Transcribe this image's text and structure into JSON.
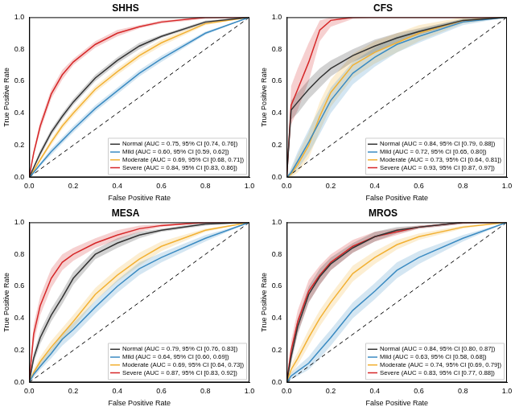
{
  "chart_data": [
    {
      "type": "line",
      "title": "SHHS",
      "x_label": "False Positive Rate",
      "y_label": "True Positive Rate",
      "xlim": [
        0,
        1
      ],
      "ylim": [
        0,
        1
      ],
      "xticks": [
        {
          "value": 0,
          "label": "0.0"
        },
        0.2,
        0.4,
        0.6,
        0.8,
        {
          "value": 1,
          "label": "1.0"
        }
      ],
      "yticks": [
        {
          "value": 0,
          "label": "0.0"
        },
        0.2,
        0.4,
        0.6,
        0.8,
        {
          "value": 1,
          "label": "1.0"
        }
      ],
      "grid": false,
      "legend": "lower right",
      "x": [
        0,
        0.02,
        0.05,
        0.1,
        0.15,
        0.2,
        0.3,
        0.4,
        0.5,
        0.6,
        0.8,
        1.0
      ],
      "series": [
        {
          "name": "Normal (AUC = 0.75, 95% CI [0.74, 0.76])",
          "color": "#333333",
          "values": [
            0,
            0.06,
            0.15,
            0.28,
            0.38,
            0.47,
            0.62,
            0.73,
            0.82,
            0.88,
            0.97,
            1
          ],
          "lower": [
            0,
            0.05,
            0.13,
            0.26,
            0.36,
            0.45,
            0.6,
            0.71,
            0.8,
            0.87,
            0.96,
            1
          ],
          "upper": [
            0,
            0.07,
            0.17,
            0.3,
            0.4,
            0.49,
            0.64,
            0.75,
            0.84,
            0.89,
            0.98,
            1
          ]
        },
        {
          "name": "Mild (AUC = 0.60, 95% CI [0.59, 0.62])",
          "color": "#3b8bc2",
          "values": [
            0,
            0.03,
            0.08,
            0.16,
            0.23,
            0.3,
            0.43,
            0.54,
            0.65,
            0.74,
            0.9,
            1
          ],
          "lower": [
            0,
            0.02,
            0.07,
            0.14,
            0.21,
            0.28,
            0.41,
            0.52,
            0.63,
            0.72,
            0.89,
            1
          ],
          "upper": [
            0,
            0.04,
            0.09,
            0.18,
            0.25,
            0.32,
            0.45,
            0.56,
            0.67,
            0.76,
            0.91,
            1
          ]
        },
        {
          "name": "Moderate (AUC = 0.69, 95% CI [0.68, 0.71])",
          "color": "#f2b134",
          "values": [
            0,
            0.04,
            0.11,
            0.22,
            0.32,
            0.4,
            0.55,
            0.66,
            0.76,
            0.84,
            0.96,
            1
          ],
          "lower": [
            0,
            0.03,
            0.1,
            0.2,
            0.3,
            0.38,
            0.53,
            0.64,
            0.74,
            0.82,
            0.95,
            1
          ],
          "upper": [
            0,
            0.05,
            0.12,
            0.24,
            0.34,
            0.42,
            0.57,
            0.68,
            0.78,
            0.86,
            0.97,
            1
          ]
        },
        {
          "name": "Severe (AUC = 0.84, 95% CI [0.83, 0.86])",
          "color": "#d62728",
          "values": [
            0,
            0.15,
            0.32,
            0.52,
            0.64,
            0.72,
            0.83,
            0.9,
            0.94,
            0.97,
            1,
            1
          ],
          "lower": [
            0,
            0.13,
            0.29,
            0.49,
            0.61,
            0.7,
            0.81,
            0.88,
            0.93,
            0.96,
            0.99,
            1
          ],
          "upper": [
            0,
            0.17,
            0.35,
            0.55,
            0.67,
            0.74,
            0.85,
            0.92,
            0.95,
            0.98,
            1,
            1
          ]
        }
      ],
      "reference": {
        "x": [
          0,
          1
        ],
        "values": [
          0,
          1
        ],
        "color": "#000000",
        "line_style": "dashed"
      }
    },
    {
      "type": "line",
      "title": "CFS",
      "x_label": "False Positive Rate",
      "y_label": "True Positive Rate",
      "xlim": [
        0,
        1
      ],
      "ylim": [
        0,
        1
      ],
      "xticks": [
        {
          "value": 0,
          "label": "0.0"
        },
        0.2,
        0.4,
        0.6,
        0.8,
        {
          "value": 1,
          "label": "1.0"
        }
      ],
      "yticks": [
        {
          "value": 0,
          "label": "0.0"
        },
        0.2,
        0.4,
        0.6,
        0.8,
        {
          "value": 1,
          "label": "1.0"
        }
      ],
      "grid": false,
      "legend": "lower right",
      "x": [
        0,
        0.02,
        0.05,
        0.1,
        0.15,
        0.2,
        0.3,
        0.4,
        0.5,
        0.6,
        0.8,
        1.0
      ],
      "series": [
        {
          "name": "Normal (AUC = 0.84, 95% CI [0.79, 0.88])",
          "color": "#333333",
          "values": [
            0,
            0.42,
            0.47,
            0.55,
            0.62,
            0.68,
            0.76,
            0.82,
            0.87,
            0.91,
            0.98,
            1
          ],
          "lower": [
            0,
            0.36,
            0.4,
            0.49,
            0.56,
            0.63,
            0.72,
            0.78,
            0.84,
            0.89,
            0.97,
            1
          ],
          "upper": [
            0,
            0.48,
            0.53,
            0.61,
            0.68,
            0.73,
            0.8,
            0.86,
            0.9,
            0.93,
            0.99,
            1
          ]
        },
        {
          "name": "Mild (AUC = 0.72, 95% CI [0.65, 0.80])",
          "color": "#3b8bc2",
          "values": [
            0,
            0.03,
            0.1,
            0.22,
            0.35,
            0.48,
            0.65,
            0.75,
            0.83,
            0.88,
            0.97,
            1
          ],
          "lower": [
            0,
            0.01,
            0.05,
            0.15,
            0.27,
            0.4,
            0.58,
            0.69,
            0.78,
            0.84,
            0.95,
            1
          ],
          "upper": [
            0,
            0.06,
            0.16,
            0.3,
            0.43,
            0.56,
            0.72,
            0.81,
            0.88,
            0.92,
            0.99,
            1
          ]
        },
        {
          "name": "Moderate (AUC = 0.73, 95% CI [0.64, 0.81])",
          "color": "#f2b134",
          "values": [
            0,
            0.02,
            0.08,
            0.2,
            0.38,
            0.53,
            0.7,
            0.78,
            0.84,
            0.9,
            0.98,
            1
          ],
          "lower": [
            0,
            0.0,
            0.03,
            0.12,
            0.29,
            0.44,
            0.62,
            0.71,
            0.78,
            0.85,
            0.96,
            1
          ],
          "upper": [
            0,
            0.05,
            0.14,
            0.28,
            0.47,
            0.61,
            0.77,
            0.85,
            0.9,
            0.95,
            1,
            1
          ]
        },
        {
          "name": "Severe (AUC = 0.93, 95% CI [0.87, 0.97])",
          "color": "#d62728",
          "values": [
            0,
            0.45,
            0.55,
            0.72,
            0.92,
            0.98,
            1,
            1,
            1,
            1,
            1,
            1
          ],
          "lower": [
            0,
            0.33,
            0.42,
            0.6,
            0.85,
            0.94,
            0.99,
            1,
            1,
            1,
            1,
            1
          ],
          "upper": [
            0,
            0.57,
            0.68,
            0.84,
            0.98,
            1,
            1,
            1,
            1,
            1,
            1,
            1
          ]
        }
      ],
      "reference": {
        "x": [
          0,
          1
        ],
        "values": [
          0,
          1
        ],
        "color": "#000000",
        "line_style": "dashed"
      }
    },
    {
      "type": "line",
      "title": "MESA",
      "x_label": "False Positive Rate",
      "y_label": "True Positive Rate",
      "xlim": [
        0,
        1
      ],
      "ylim": [
        0,
        1
      ],
      "xticks": [
        {
          "value": 0,
          "label": "0.0"
        },
        0.2,
        0.4,
        0.6,
        0.8,
        {
          "value": 1,
          "label": "1.0"
        }
      ],
      "yticks": [
        {
          "value": 0,
          "label": "0.0"
        },
        0.2,
        0.4,
        0.6,
        0.8,
        {
          "value": 1,
          "label": "1.0"
        }
      ],
      "grid": false,
      "legend": "lower right",
      "x": [
        0,
        0.02,
        0.05,
        0.1,
        0.15,
        0.2,
        0.3,
        0.4,
        0.5,
        0.6,
        0.8,
        1.0
      ],
      "series": [
        {
          "name": "Normal (AUC = 0.79, 95% CI [0.76, 0.83])",
          "color": "#333333",
          "values": [
            0,
            0.15,
            0.28,
            0.42,
            0.53,
            0.65,
            0.8,
            0.87,
            0.92,
            0.95,
            0.99,
            1
          ],
          "lower": [
            0,
            0.12,
            0.24,
            0.38,
            0.49,
            0.61,
            0.77,
            0.84,
            0.9,
            0.94,
            0.98,
            1
          ],
          "upper": [
            0,
            0.18,
            0.32,
            0.46,
            0.57,
            0.69,
            0.83,
            0.9,
            0.94,
            0.96,
            1,
            1
          ]
        },
        {
          "name": "Mild (AUC = 0.64, 95% CI [0.60, 0.69])",
          "color": "#3b8bc2",
          "values": [
            0,
            0.05,
            0.1,
            0.18,
            0.27,
            0.33,
            0.47,
            0.6,
            0.71,
            0.78,
            0.9,
            1
          ],
          "lower": [
            0,
            0.03,
            0.08,
            0.15,
            0.23,
            0.29,
            0.43,
            0.56,
            0.67,
            0.75,
            0.88,
            1
          ],
          "upper": [
            0,
            0.07,
            0.13,
            0.21,
            0.31,
            0.37,
            0.51,
            0.64,
            0.75,
            0.81,
            0.92,
            1
          ]
        },
        {
          "name": "Moderate (AUC = 0.69, 95% CI [0.64, 0.73])",
          "color": "#f2b134",
          "values": [
            0,
            0.06,
            0.13,
            0.22,
            0.3,
            0.38,
            0.55,
            0.67,
            0.77,
            0.85,
            0.95,
            1
          ],
          "lower": [
            0,
            0.04,
            0.1,
            0.18,
            0.26,
            0.34,
            0.51,
            0.63,
            0.73,
            0.82,
            0.94,
            1
          ],
          "upper": [
            0,
            0.08,
            0.16,
            0.26,
            0.34,
            0.42,
            0.59,
            0.71,
            0.81,
            0.88,
            0.96,
            1
          ]
        },
        {
          "name": "Severe (AUC = 0.87, 95% CI [0.83, 0.92])",
          "color": "#d62728",
          "values": [
            0,
            0.3,
            0.48,
            0.65,
            0.75,
            0.8,
            0.87,
            0.92,
            0.96,
            0.98,
            1,
            1
          ],
          "lower": [
            0,
            0.24,
            0.42,
            0.59,
            0.7,
            0.76,
            0.84,
            0.89,
            0.94,
            0.97,
            1,
            1
          ],
          "upper": [
            0,
            0.36,
            0.54,
            0.71,
            0.8,
            0.84,
            0.9,
            0.95,
            0.98,
            0.99,
            1,
            1
          ]
        }
      ],
      "reference": {
        "x": [
          0,
          1
        ],
        "values": [
          0,
          1
        ],
        "color": "#000000",
        "line_style": "dashed"
      }
    },
    {
      "type": "line",
      "title": "MROS",
      "x_label": "False Positive Rate",
      "y_label": "True Positive Rate",
      "xlim": [
        0,
        1
      ],
      "ylim": [
        0,
        1
      ],
      "xticks": [
        {
          "value": 0,
          "label": "0.0"
        },
        0.2,
        0.4,
        0.6,
        0.8,
        {
          "value": 1,
          "label": "1.0"
        }
      ],
      "yticks": [
        {
          "value": 0,
          "label": "0.0"
        },
        0.2,
        0.4,
        0.6,
        0.8,
        {
          "value": 1,
          "label": "1.0"
        }
      ],
      "grid": false,
      "legend": "lower right",
      "x": [
        0,
        0.02,
        0.05,
        0.1,
        0.15,
        0.2,
        0.3,
        0.4,
        0.5,
        0.6,
        0.8,
        1.0
      ],
      "series": [
        {
          "name": "Normal (AUC = 0.84, 95% CI [0.80, 0.87])",
          "color": "#333333",
          "values": [
            0,
            0.16,
            0.35,
            0.55,
            0.66,
            0.74,
            0.84,
            0.91,
            0.95,
            0.97,
            1,
            1
          ],
          "lower": [
            0,
            0.12,
            0.3,
            0.5,
            0.61,
            0.7,
            0.81,
            0.88,
            0.93,
            0.96,
            0.99,
            1
          ],
          "upper": [
            0,
            0.2,
            0.4,
            0.6,
            0.71,
            0.78,
            0.87,
            0.94,
            0.97,
            0.98,
            1,
            1
          ]
        },
        {
          "name": "Mild (AUC = 0.63, 95% CI [0.58, 0.68])",
          "color": "#3b8bc2",
          "values": [
            0,
            0.04,
            0.07,
            0.12,
            0.2,
            0.28,
            0.45,
            0.57,
            0.7,
            0.78,
            0.9,
            1
          ],
          "lower": [
            0,
            0.02,
            0.04,
            0.08,
            0.15,
            0.23,
            0.4,
            0.52,
            0.65,
            0.74,
            0.88,
            1
          ],
          "upper": [
            0,
            0.06,
            0.1,
            0.16,
            0.25,
            0.33,
            0.5,
            0.62,
            0.75,
            0.82,
            0.92,
            1
          ]
        },
        {
          "name": "Moderate (AUC = 0.74, 95% CI [0.69, 0.79])",
          "color": "#f2b134",
          "values": [
            0,
            0.08,
            0.15,
            0.28,
            0.4,
            0.5,
            0.68,
            0.78,
            0.86,
            0.91,
            0.97,
            1
          ],
          "lower": [
            0,
            0.05,
            0.11,
            0.23,
            0.35,
            0.45,
            0.63,
            0.74,
            0.83,
            0.89,
            0.96,
            1
          ],
          "upper": [
            0,
            0.11,
            0.19,
            0.33,
            0.45,
            0.55,
            0.73,
            0.82,
            0.89,
            0.93,
            0.98,
            1
          ]
        },
        {
          "name": "Severe (AUC = 0.83, 95% CI [0.77, 0.88])",
          "color": "#d62728",
          "values": [
            0,
            0.2,
            0.38,
            0.57,
            0.67,
            0.75,
            0.85,
            0.91,
            0.94,
            0.97,
            1,
            1
          ],
          "lower": [
            0,
            0.14,
            0.31,
            0.5,
            0.61,
            0.7,
            0.81,
            0.88,
            0.92,
            0.96,
            0.99,
            1
          ],
          "upper": [
            0,
            0.26,
            0.45,
            0.64,
            0.73,
            0.8,
            0.89,
            0.94,
            0.96,
            0.98,
            1,
            1
          ]
        }
      ],
      "reference": {
        "x": [
          0,
          1
        ],
        "values": [
          0,
          1
        ],
        "color": "#000000",
        "line_style": "dashed"
      }
    }
  ]
}
